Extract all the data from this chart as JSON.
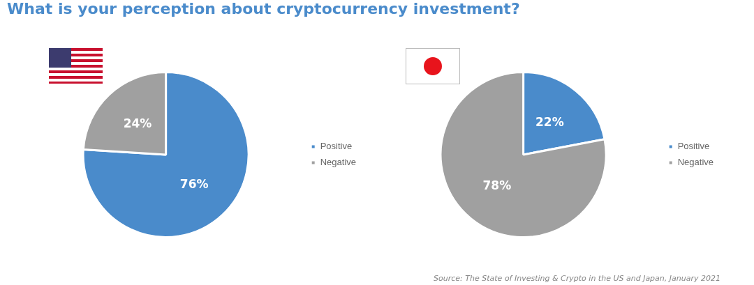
{
  "chart_data": [
    {
      "type": "pie",
      "title": "What is your perception about cryptocurrency investment?",
      "categories": [
        "Positive",
        "Negative"
      ],
      "values": [
        76,
        24
      ],
      "colors": [
        "#4a8bcb",
        "#a0a0a0"
      ],
      "value_labels": [
        "76%",
        "24%"
      ],
      "legend": "right"
    },
    {
      "type": "pie",
      "categories": [
        "Positive",
        "Negative"
      ],
      "values": [
        22,
        78
      ],
      "colors": [
        "#4a8bcb",
        "#a0a0a0"
      ],
      "value_labels": [
        "22%",
        "78%"
      ],
      "legend": "right",
      "annotations": [
        "Source: The State of Investing & Crypto in the US and Japan, January 2021"
      ]
    }
  ]
}
